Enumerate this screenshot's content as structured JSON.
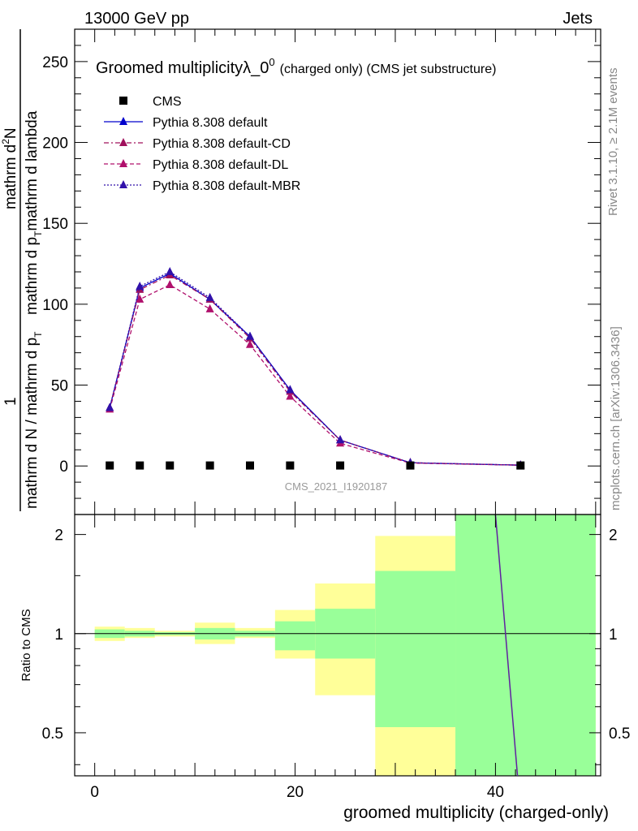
{
  "header": {
    "left": "13000 GeV pp",
    "right": "Jets"
  },
  "side": {
    "rivet": "Rivet 3.1.10, ≥ 2.1M events",
    "mcplots": "mcplots.cern.ch [arXiv:1306.3436]"
  },
  "chart_data": {
    "type": "line",
    "title": "Groomed multiplicityλ_0",
    "title_sup": "0",
    "title_suffix": "(charged only) (CMS jet substructure)",
    "analysis_label": "CMS_2021_I1920187",
    "ylabel_numerator": "1",
    "ylabel_denominator": "mathrm d N / mathrm d p",
    "ylabel_denominator_sub": "T",
    "ylabel_numerator_rotated": "mathrm d",
    "ylabel_numerator_rotated_sup": "2",
    "ylabel_numerator_rotated_rest": "N",
    "ylabel_denom_rotated": "mathrm d p",
    "ylabel_denom_rotated_sub": "T",
    "ylabel_denom_rotated_rest": "mathrm d lambda",
    "xlabel": "groomed multiplicity (charged-only)",
    "ratio_ylabel": "Ratio to CMS",
    "xlim": [
      -2,
      50.5
    ],
    "ylim": [
      -30,
      270
    ],
    "ratio_ylim": [
      0.37,
      2.3
    ],
    "x_ticks": [
      0,
      20,
      40
    ],
    "y_ticks": [
      0,
      50,
      100,
      150,
      200,
      250
    ],
    "ratio_ticks": [
      0.5,
      1,
      2
    ],
    "legend": [
      "CMS",
      "Pythia 8.308 default",
      "Pythia 8.308 default-CD",
      "Pythia 8.308 default-DL",
      "Pythia 8.308 default-MBR"
    ],
    "data_points": {
      "name": "CMS",
      "x": [
        1.5,
        4.5,
        7.5,
        11.5,
        15.5,
        19.5,
        24.5,
        31.5,
        42.5
      ],
      "y": [
        0.3,
        0.3,
        0.3,
        0.3,
        0.3,
        0.3,
        0.3,
        0.3,
        0.3
      ]
    },
    "series": [
      {
        "name": "Pythia 8.308 default",
        "color": "#0000cc",
        "dash": "",
        "x": [
          1.5,
          4.5,
          7.5,
          11.5,
          15.5,
          19.5,
          24.5,
          31.5,
          42.5
        ],
        "y": [
          36,
          110,
          119,
          103,
          80,
          47,
          16,
          2,
          0.5
        ]
      },
      {
        "name": "Pythia 8.308 default-CD",
        "color": "#a0105c",
        "dash": "6,3,2,3",
        "x": [
          1.5,
          4.5,
          7.5,
          11.5,
          15.5,
          19.5,
          24.5,
          31.5,
          42.5
        ],
        "y": [
          36,
          109,
          118,
          103,
          79,
          46,
          16,
          2,
          0.5
        ]
      },
      {
        "name": "Pythia 8.308 default-DL",
        "color": "#b0106c",
        "dash": "5,3",
        "x": [
          1.5,
          4.5,
          7.5,
          11.5,
          15.5,
          19.5,
          24.5,
          31.5,
          42.5
        ],
        "y": [
          35,
          103,
          112,
          97,
          75,
          43,
          14,
          1.8,
          0.5
        ]
      },
      {
        "name": "Pythia 8.308 default-MBR",
        "color": "#3010aa",
        "dash": "2,2",
        "x": [
          1.5,
          4.5,
          7.5,
          11.5,
          15.5,
          19.5,
          24.5,
          31.5,
          42.5
        ],
        "y": [
          36,
          111,
          120,
          104,
          80,
          47,
          16,
          2,
          0.5
        ]
      }
    ],
    "ratio_bands": {
      "edges": [
        0,
        3,
        6,
        10,
        14,
        18,
        22,
        28,
        36,
        50
      ],
      "green_lo": [
        0.97,
        0.98,
        0.99,
        0.96,
        0.98,
        0.89,
        0.84,
        0.52,
        0.37
      ],
      "green_hi": [
        1.03,
        1.02,
        1.01,
        1.04,
        1.02,
        1.09,
        1.19,
        1.55,
        2.3
      ],
      "yellow_lo": [
        0.95,
        0.97,
        0.98,
        0.93,
        0.97,
        0.84,
        0.65,
        0.37,
        0.37
      ],
      "yellow_hi": [
        1.05,
        1.04,
        1.02,
        1.08,
        1.04,
        1.18,
        1.42,
        1.98,
        2.3
      ]
    },
    "ratio_line": {
      "x": [
        40.0,
        42.2
      ],
      "y": [
        2.3,
        0.37
      ]
    },
    "colors": {
      "green": "#99ff99",
      "yellow": "#ffff99"
    }
  }
}
